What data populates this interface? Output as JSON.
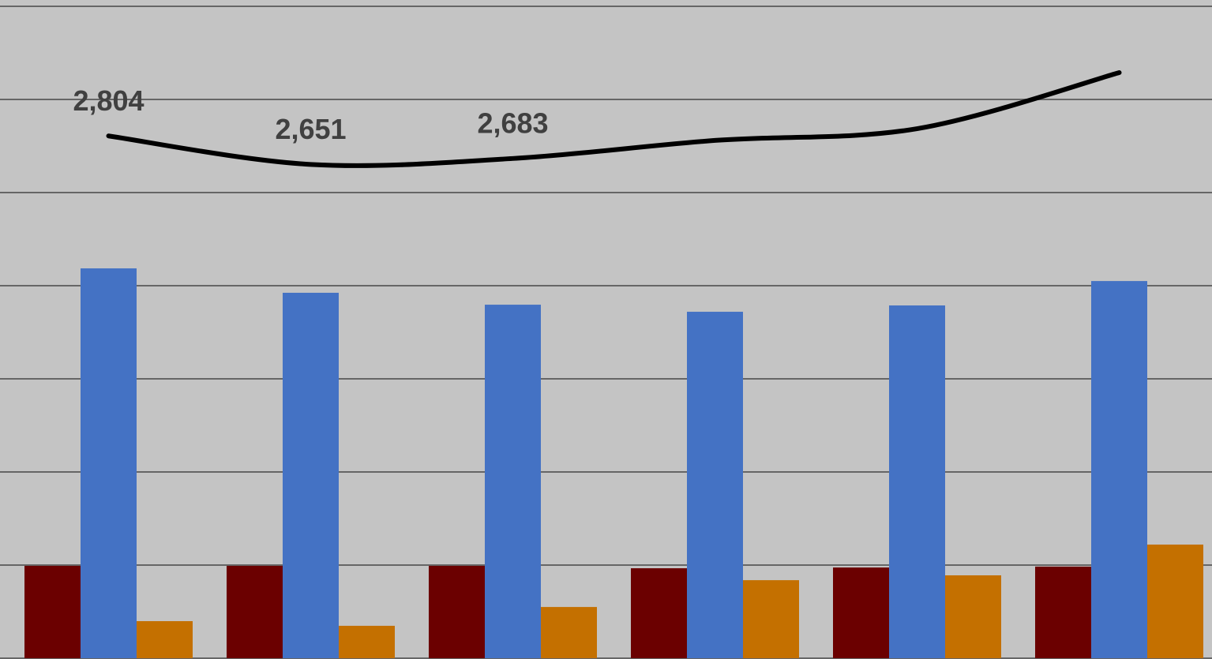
{
  "chart_data": {
    "type": "bar",
    "ylim": [
      0,
      3500
    ],
    "yticks": [
      0,
      500,
      1000,
      1500,
      2000,
      2500,
      3000,
      3500
    ],
    "grid": true,
    "background": "#c4c4c4",
    "series": [
      {
        "type": "bar",
        "color": "#6b0000",
        "values": [
          496,
          496,
          496,
          483,
          487,
          492
        ]
      },
      {
        "type": "bar",
        "color": "#4472c4",
        "values": [
          2093,
          1962,
          1898,
          1860,
          1894,
          2025
        ]
      },
      {
        "type": "bar",
        "color": "#c47000",
        "values": [
          199,
          174,
          275,
          419,
          445,
          610
        ]
      },
      {
        "type": "line",
        "color": "#000000",
        "smooth": true,
        "values": [
          2804,
          2651,
          2683,
          2780,
          2843,
          3144
        ],
        "value_labels": [
          "2,804",
          "2,651",
          "2,683",
          null,
          null,
          null
        ]
      }
    ]
  }
}
